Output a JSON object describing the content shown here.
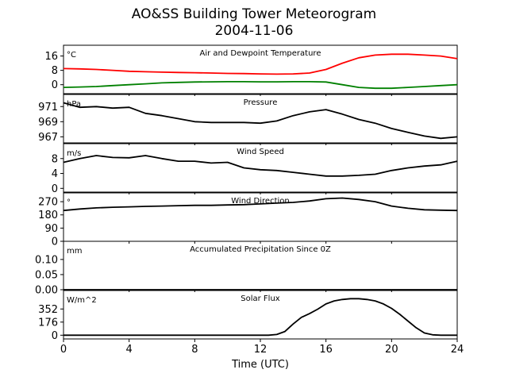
{
  "title_line1": "AO&SS Building Tower Meteorogram",
  "title_line2": "2004-11-06",
  "chart_data": {
    "type": "line",
    "xlabel": "Time (UTC)",
    "xlim": [
      0,
      24
    ],
    "xticks": [
      "0",
      "4",
      "8",
      "12",
      "16",
      "20",
      "24"
    ],
    "panels": [
      {
        "title": "Air and Dewpoint Temperature",
        "unit": "°C",
        "ylim": [
          -5,
          22
        ],
        "yticks": [
          0,
          8,
          16
        ],
        "series": [
          {
            "color": "#ff0000",
            "x": [
              0,
              1,
              2,
              3,
              4,
              5,
              6,
              7,
              8,
              9,
              10,
              11,
              12,
              13,
              14,
              15,
              16,
              17,
              18,
              19,
              20,
              21,
              22,
              23,
              24
            ],
            "y": [
              9,
              8.8,
              8.5,
              8,
              7.5,
              7.2,
              7,
              6.8,
              6.7,
              6.5,
              6.3,
              6.2,
              6,
              5.9,
              6,
              6.5,
              8.5,
              12,
              15,
              16.5,
              17,
              17,
              16.5,
              16,
              14.5
            ]
          },
          {
            "color": "#008000",
            "x": [
              0,
              1,
              2,
              3,
              4,
              5,
              6,
              7,
              8,
              9,
              10,
              11,
              12,
              13,
              14,
              15,
              16,
              17,
              18,
              19,
              20,
              21,
              22,
              23,
              24
            ],
            "y": [
              -1.5,
              -1.3,
              -1,
              -0.5,
              0,
              0.5,
              1,
              1.3,
              1.5,
              1.6,
              1.7,
              1.7,
              1.6,
              1.6,
              1.7,
              1.7,
              1.5,
              0,
              -1.5,
              -2,
              -2,
              -1.5,
              -1,
              -0.5,
              0
            ]
          }
        ]
      },
      {
        "title": "Pressure",
        "unit": "hPa",
        "ylim": [
          966.2,
          972.6
        ],
        "yticks": [
          967,
          969,
          971
        ],
        "series": [
          {
            "color": "#000000",
            "x": [
              0,
              1,
              2,
              3,
              4,
              5,
              6,
              7,
              8,
              9,
              10,
              11,
              12,
              13,
              14,
              15,
              16,
              17,
              18,
              19,
              20,
              21,
              22,
              23,
              24
            ],
            "y": [
              971.5,
              970.9,
              971,
              970.8,
              970.9,
              970.1,
              969.8,
              969.4,
              969,
              968.9,
              968.9,
              968.9,
              968.8,
              969.1,
              969.8,
              970.3,
              970.6,
              970,
              969.3,
              968.8,
              968.1,
              967.6,
              967.1,
              966.8,
              967
            ]
          }
        ]
      },
      {
        "title": "Wind Speed",
        "unit": "m/s",
        "ylim": [
          -1,
          12
        ],
        "yticks": [
          0,
          4,
          8
        ],
        "series": [
          {
            "color": "#000000",
            "x": [
              0,
              1,
              2,
              3,
              4,
              5,
              6,
              7,
              8,
              9,
              10,
              11,
              12,
              13,
              14,
              15,
              16,
              17,
              18,
              19,
              20,
              21,
              22,
              23,
              24
            ],
            "y": [
              7,
              8,
              8.8,
              8.3,
              8.2,
              8.8,
              8,
              7.3,
              7.3,
              6.8,
              7,
              5.5,
              5,
              4.8,
              4.3,
              3.8,
              3.3,
              3.3,
              3.5,
              3.8,
              4.8,
              5.5,
              6,
              6.3,
              7.3
            ]
          }
        ]
      },
      {
        "title": "Wind Direction",
        "unit": "°",
        "ylim": [
          0,
          330
        ],
        "yticks": [
          0,
          90,
          180,
          270
        ],
        "series": [
          {
            "color": "#000000",
            "x": [
              0,
              1,
              2,
              3,
              4,
              5,
              6,
              7,
              8,
              9,
              10,
              11,
              12,
              13,
              14,
              15,
              16,
              17,
              18,
              19,
              20,
              21,
              22,
              23,
              24
            ],
            "y": [
              210,
              220,
              228,
              232,
              235,
              238,
              240,
              243,
              245,
              245,
              248,
              250,
              255,
              260,
              265,
              275,
              290,
              295,
              285,
              270,
              240,
              225,
              215,
              212,
              210
            ]
          }
        ]
      },
      {
        "title": "Accumulated Precipitation Since 0Z",
        "unit": "mm",
        "ylim": [
          0,
          0.16
        ],
        "yticks": [
          0.0,
          0.05,
          0.1
        ],
        "series": [
          {
            "color": "#000000",
            "x": [
              0,
              24
            ],
            "y": [
              0,
              0
            ]
          }
        ]
      },
      {
        "title": "Solar Flux",
        "unit": "W/m^2",
        "ylim": [
          -50,
          600
        ],
        "yticks": [
          0,
          176,
          352
        ],
        "series": [
          {
            "color": "#000000",
            "x": [
              0,
              12.5,
              13,
              13.5,
              14,
              14.5,
              15,
              15.5,
              16,
              16.5,
              17,
              17.5,
              18,
              18.5,
              19,
              19.5,
              20,
              20.5,
              21,
              21.5,
              22,
              22.5,
              23,
              24
            ],
            "y": [
              0,
              0,
              10,
              50,
              150,
              240,
              290,
              350,
              420,
              460,
              480,
              490,
              490,
              480,
              460,
              420,
              360,
              280,
              190,
              100,
              30,
              5,
              0,
              0
            ]
          }
        ]
      }
    ]
  }
}
